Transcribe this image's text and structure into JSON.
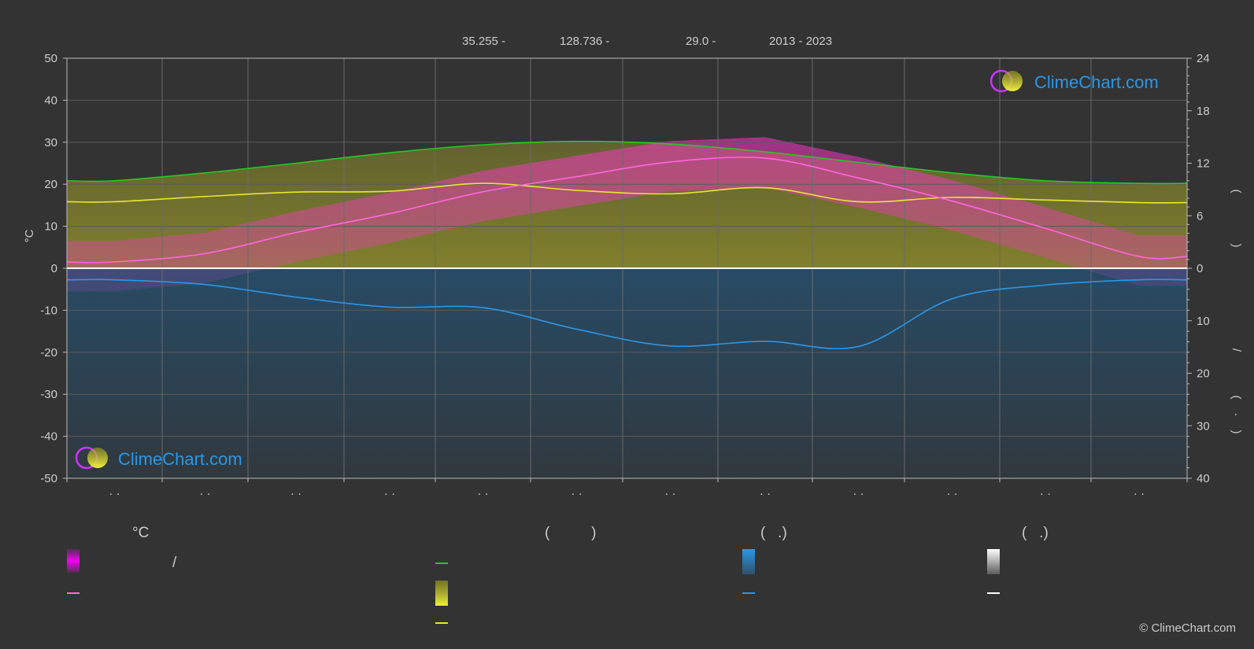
{
  "header": {
    "lat": "35.255 -",
    "lon": "128.736 -",
    "elev": "29.0 -",
    "years": "2013 - 2023"
  },
  "axes": {
    "left_unit": "°C",
    "left_ticks": [
      50,
      40,
      30,
      20,
      10,
      0,
      -10,
      -20,
      -30,
      -40,
      -50
    ],
    "right_top_ticks": [
      24,
      18,
      12,
      6,
      0
    ],
    "right_bottom_ticks": [
      10,
      20,
      30,
      40
    ],
    "right_label_marks": [
      "(",
      ")",
      "/",
      "(",
      "·",
      ")"
    ],
    "month_ticks": [
      "· ·",
      "· ·",
      "· ·",
      "· ·",
      "· ·",
      "· ·",
      "· ·",
      "· ·",
      "· ·",
      "· ·",
      "· ·",
      "· ·"
    ]
  },
  "legend": {
    "col1_header": "°C",
    "col1_slash": "/",
    "col2_header": "(          )",
    "col3_header": "(   .)",
    "col4_header": "(   .)"
  },
  "logo": {
    "text": "ClimeChart.com"
  },
  "copyright": "© ClimeChart.com",
  "colors": {
    "daylight": "#22cc22",
    "sunshine": "#e6e633",
    "temperature": "#ff66dd",
    "temp_range": "#ff00ff",
    "precipitation": "#2a97e8",
    "snow": "#ffffff",
    "sunshine_fill": "#a0a020"
  },
  "chart_data": {
    "type": "line",
    "x": [
      0,
      1,
      2,
      3,
      4,
      5,
      6,
      7,
      8,
      9,
      10,
      11
    ],
    "ylim": [
      -50,
      50
    ],
    "y2_top_lim": [
      0,
      24
    ],
    "y2_bottom_lim": [
      0,
      40
    ],
    "series": [
      {
        "key": "daylight",
        "axis": "hours",
        "values": [
          10.0,
          10.9,
          12.0,
          13.2,
          14.1,
          14.5,
          14.2,
          13.3,
          12.1,
          10.9,
          10.0,
          9.7
        ]
      },
      {
        "key": "sunshine",
        "axis": "hours",
        "values": [
          7.6,
          8.2,
          8.7,
          8.8,
          9.7,
          8.9,
          8.5,
          9.2,
          7.6,
          8.1,
          7.8,
          7.5
        ]
      },
      {
        "key": "temperature",
        "axis": "celsius",
        "values": [
          1.5,
          3.5,
          8.5,
          13.0,
          18.2,
          21.8,
          25.3,
          26.2,
          21.5,
          16.0,
          9.5,
          2.8
        ]
      },
      {
        "key": "precipitation",
        "axis": "mm",
        "values": [
          2.2,
          3.1,
          5.5,
          7.4,
          7.5,
          11.6,
          14.8,
          13.9,
          14.9,
          5.8,
          3.2,
          2.2
        ]
      },
      {
        "key": "snow",
        "axis": "mm",
        "values": [
          0,
          0,
          0,
          0,
          0,
          0,
          0,
          0,
          0,
          0,
          0,
          0
        ]
      }
    ]
  }
}
